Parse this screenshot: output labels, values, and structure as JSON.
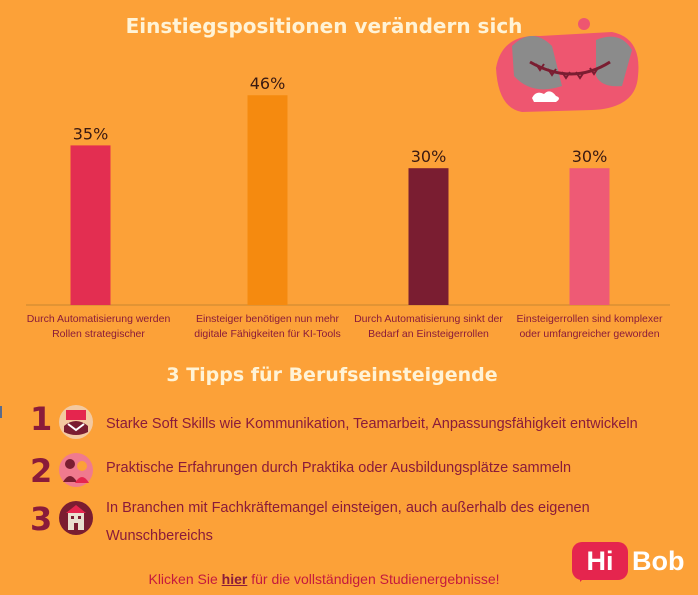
{
  "chart_data": {
    "type": "bar",
    "title": "Einstiegspositionen verändern sich",
    "categories": [
      "Durch Automatisierung werden Rollen strategischer",
      "Einsteiger benötigen nun mehr digitale Fähigkeiten für KI-Tools",
      "Durch Automatisierung sinkt der Bedarf an Einsteigerrollen",
      "Einsteigerrollen sind komplexer oder umfangreicher geworden"
    ],
    "category_lines": [
      [
        "Durch Automatisierung werden",
        "Rollen strategischer"
      ],
      [
        "Einsteiger benötigen nun mehr",
        "digitale Fähigkeiten für KI-Tools"
      ],
      [
        "Durch Automatisierung sinkt der",
        "Bedarf an Einsteigerrollen"
      ],
      [
        "Einsteigerrollen sind komplexer",
        "oder umfangreicher geworden"
      ]
    ],
    "values": [
      35,
      46,
      30,
      30
    ],
    "value_labels": [
      "35%",
      "46%",
      "30%",
      "30%"
    ],
    "colors": [
      "#E32E51",
      "#F58A0F",
      "#7A1D31",
      "#EE5A75"
    ],
    "ylim": [
      0,
      50
    ],
    "grid": false,
    "legend": "none"
  },
  "tips": {
    "title": "3 Tipps für Berufseinsteigende",
    "items": [
      {
        "number": "1",
        "icon": "handshake-icon",
        "text": "Starke Soft Skills wie Kommunikation, Teamarbeit, Anpassungsfähigkeit entwickeln"
      },
      {
        "number": "2",
        "icon": "people-icon",
        "text": "Praktische Erfahrungen durch Praktika oder Ausbildungsplätze sammeln"
      },
      {
        "number": "3",
        "icon": "building-icon",
        "text": "In Branchen mit Fachkräftemangel einsteigen, auch außerhalb des eigenen Wunschbereichs"
      }
    ]
  },
  "footer": {
    "prefix": "Klicken Sie ",
    "link": "hier",
    "suffix": " für die vollständigen Studienergebnisse!"
  },
  "logo": {
    "hi": "Hi",
    "bob": "Bob"
  },
  "colors": {
    "background": "#FCA138",
    "text": "#8A1B3A",
    "accent": "#E5254E"
  }
}
